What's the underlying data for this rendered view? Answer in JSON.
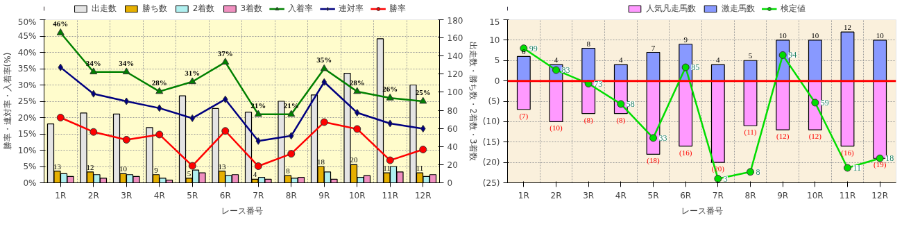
{
  "chart_data": [
    {
      "type": "bar",
      "categories": [
        "1R",
        "2R",
        "3R",
        "4R",
        "5R",
        "6R",
        "7R",
        "8R",
        "9R",
        "10R",
        "11R",
        "12R"
      ],
      "xlabel": "レース番号",
      "ylabel": "勝率・連対率・入着率(%)",
      "y2label": "出走数・勝ち数・2着数・3着数",
      "ylim": [
        0,
        50
      ],
      "yticks": [
        {
          "value": 0,
          "label": "0%"
        },
        {
          "value": 5,
          "label": "5%"
        },
        {
          "value": 10,
          "label": "10%"
        },
        {
          "value": 15,
          "label": "15%"
        },
        {
          "value": 20,
          "label": "20%"
        },
        {
          "value": 25,
          "label": "25%"
        },
        {
          "value": 30,
          "label": "30%"
        },
        {
          "value": 35,
          "label": "35%"
        },
        {
          "value": 40,
          "label": "40%"
        },
        {
          "value": 45,
          "label": "45%"
        },
        {
          "value": 50,
          "label": "50%"
        }
      ],
      "y2lim": [
        0,
        180
      ],
      "y2ticks": [
        0,
        20,
        40,
        60,
        80,
        100,
        120,
        140,
        160,
        180
      ],
      "grid": true,
      "legend": "top",
      "series": [
        {
          "name": "出走数",
          "color": "#e4e4e4",
          "axis": "y2",
          "values": [
            65,
            77,
            76,
            61,
            96,
            82,
            78,
            90,
            97,
            121,
            159,
            108
          ]
        },
        {
          "name": "勝ち数",
          "color": "#e6b000",
          "axis": "y2",
          "values": [
            13,
            12,
            10,
            9,
            5,
            13,
            4,
            8,
            18,
            20,
            11,
            11
          ],
          "value_labels": [
            "13",
            "12",
            "10",
            "9",
            "5",
            "13",
            "4",
            "8",
            "18",
            "20",
            "11",
            "11"
          ]
        },
        {
          "name": "2着数",
          "color": "#b0f0f0",
          "axis": "y2",
          "values": [
            10,
            9,
            9,
            5,
            14,
            8,
            6,
            5,
            12,
            6,
            18,
            7
          ]
        },
        {
          "name": "3着数",
          "color": "#f090c0",
          "axis": "y2",
          "values": [
            7,
            5,
            7,
            3,
            11,
            9,
            4,
            6,
            4,
            8,
            12,
            9
          ]
        },
        {
          "name": "入着率",
          "type": "line",
          "color": "#008000",
          "marker": "triangle",
          "values": [
            46,
            34,
            34,
            28,
            31,
            37,
            21,
            21,
            35,
            28,
            26,
            25
          ],
          "value_labels": [
            "46%",
            "34%",
            "34%",
            "28%",
            "31%",
            "37%",
            "21%",
            "21%",
            "35%",
            "28%",
            "26%",
            "25%"
          ]
        },
        {
          "name": "連対率",
          "type": "line",
          "color": "#000080",
          "marker": "diamond",
          "values": [
            35.4,
            27.3,
            25,
            22.9,
            19.8,
            25.6,
            12.8,
            14.4,
            30.9,
            21.5,
            18.2,
            16.6
          ]
        },
        {
          "name": "勝率",
          "type": "line",
          "color": "#ff0000",
          "marker": "circle",
          "values": [
            20,
            15.6,
            13.2,
            14.8,
            5.2,
            15.9,
            5.1,
            8.9,
            18.6,
            16.5,
            6.9,
            10.2
          ]
        }
      ]
    },
    {
      "type": "bar",
      "stacked": true,
      "categories": [
        "1R",
        "2R",
        "3R",
        "4R",
        "5R",
        "6R",
        "7R",
        "8R",
        "9R",
        "10R",
        "11R",
        "12R"
      ],
      "xlabel": "レース番号",
      "ylim": [
        -25,
        15
      ],
      "yticks": [
        {
          "value": -25,
          "label": "(25)"
        },
        {
          "value": -20,
          "label": "(20)"
        },
        {
          "value": -15,
          "label": "(15)"
        },
        {
          "value": -10,
          "label": "(10)"
        },
        {
          "value": -5,
          "label": "(5)"
        },
        0,
        5,
        10,
        15
      ],
      "y2lim": [
        0,
        120
      ],
      "grid": true,
      "legend": "top",
      "ref_lines": [
        {
          "axis": "y",
          "value": 0,
          "color": "#ff0000"
        }
      ],
      "series": [
        {
          "name": "人気凡走馬数",
          "color": "#ff99ff",
          "values": [
            -7,
            -10,
            -8,
            -8,
            -18,
            -16,
            -20,
            -11,
            -12,
            -12,
            -16,
            -19
          ],
          "value_labels": [
            "(7)",
            "(10)",
            "(8)",
            "(8)",
            "(18)",
            "(16)",
            "(20)",
            "(11)",
            "(12)",
            "(12)",
            "(16)",
            "(19)"
          ]
        },
        {
          "name": "激走馬数",
          "color": "#8899ff",
          "values": [
            6,
            4,
            8,
            4,
            7,
            9,
            4,
            5,
            10,
            10,
            12,
            10
          ],
          "value_labels": [
            "6",
            "4",
            "8",
            "4",
            "7",
            "9",
            "4",
            "5",
            "10",
            "10",
            "12",
            "10"
          ]
        },
        {
          "name": "検定値",
          "type": "line",
          "axis": "y2",
          "color": "#00dd00",
          "marker": "circle",
          "values": [
            99,
            83,
            73,
            58,
            33,
            85,
            3,
            8,
            94,
            59,
            11,
            18
          ],
          "value_labels": [
            "99",
            "83",
            "73",
            "58",
            "33",
            "85",
            "3",
            "8",
            "94",
            "59",
            "11",
            "18"
          ]
        }
      ]
    }
  ]
}
